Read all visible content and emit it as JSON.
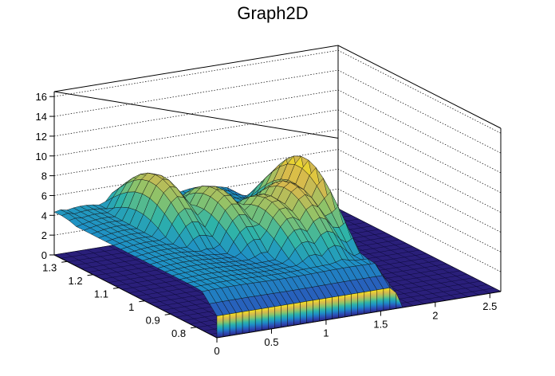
{
  "chart_data": {
    "type": "surface",
    "title": "Graph2D",
    "xlabel": "",
    "ylabel": "",
    "zlabel": "",
    "x_range": [
      0,
      2.6
    ],
    "y_range": [
      0.72,
      1.35
    ],
    "z_range": [
      0,
      16.5
    ],
    "x_ticks": [
      0,
      0.5,
      1,
      1.5,
      2,
      2.5
    ],
    "x_tick_labels": [
      "0",
      "0.5",
      "1",
      "1.5",
      "2",
      "2.5"
    ],
    "y_ticks": [
      0.8,
      0.9,
      1,
      1.1,
      1.2,
      1.3
    ],
    "y_tick_labels": [
      "0.8",
      "0.9",
      "1",
      "1.1",
      "1.2",
      "1.3"
    ],
    "z_ticks": [
      0,
      2,
      4,
      6,
      8,
      10,
      12,
      14,
      16
    ],
    "z_tick_labels": [
      "0",
      "2",
      "4",
      "6",
      "8",
      "10",
      "12",
      "14",
      "16"
    ],
    "grid": true,
    "colormap": "viridis-like (blue to yellow)",
    "surface_peaks": [
      {
        "x": 0.05,
        "y": 1.33,
        "z": 4.5
      },
      {
        "x": 0.6,
        "y": 1.2,
        "z": 9
      },
      {
        "x": 0.9,
        "y": 1.1,
        "z": 8.5
      },
      {
        "x": 1.15,
        "y": 1.0,
        "z": 8.5
      },
      {
        "x": 1.35,
        "y": 1.0,
        "z": 9.5
      },
      {
        "x": 1.6,
        "y": 1.05,
        "z": 11
      }
    ],
    "zero_region": {
      "x_from": 1.7,
      "x_to": 2.6,
      "z": 0
    }
  }
}
